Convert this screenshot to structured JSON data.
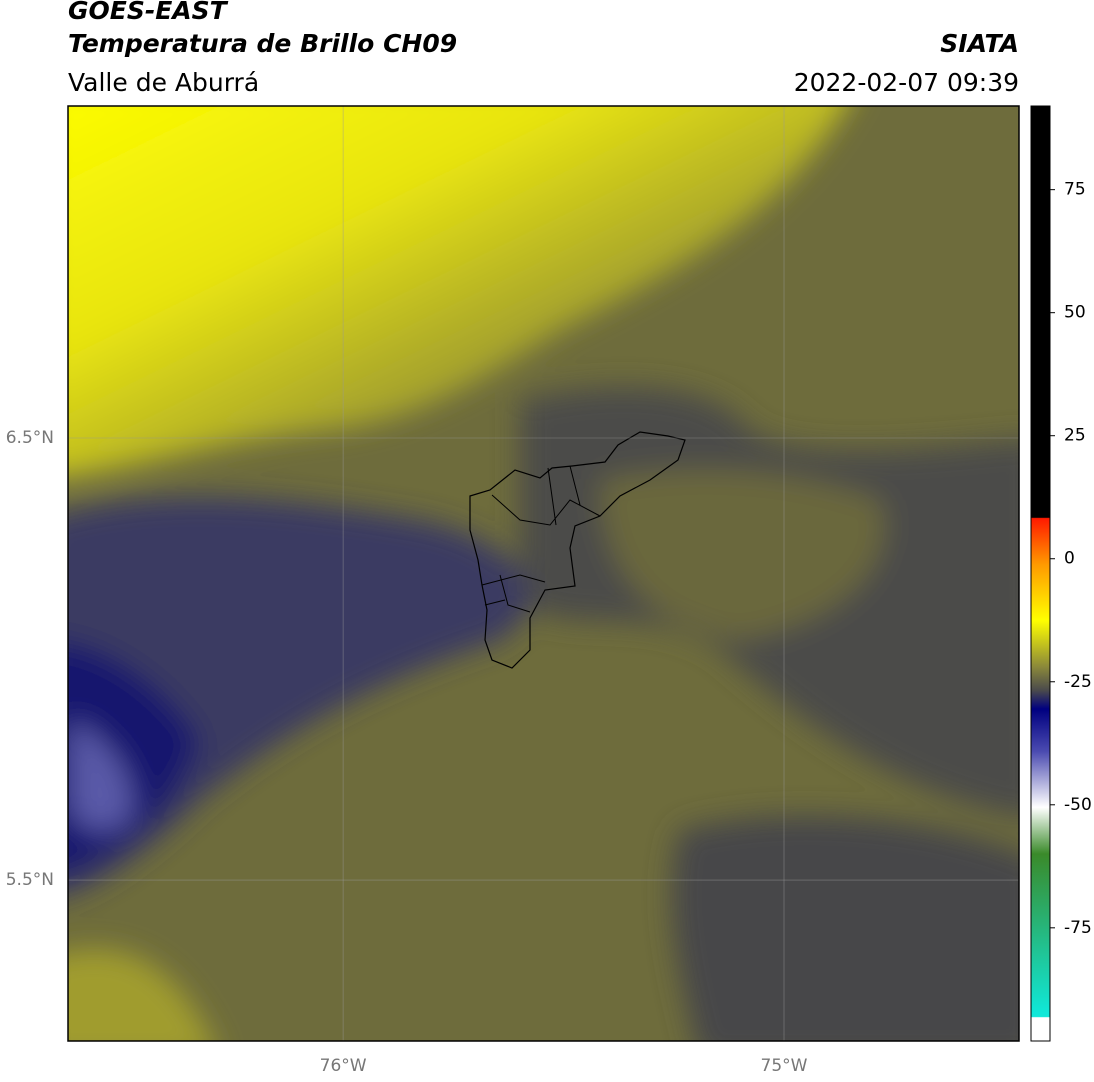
{
  "header": {
    "title": "GOES-EAST",
    "subtitle": "Temperatura de Brillo CH09",
    "region": "Valle de Aburrá",
    "source": "SIATA",
    "datetime": "2022-02-07 09:39"
  },
  "map": {
    "xlim": [
      -76.624,
      -74.467
    ],
    "ylim": [
      5.136,
      7.251
    ],
    "xticks": [
      {
        "value": -76,
        "label": "76°W"
      },
      {
        "value": -75,
        "label": "75°W"
      }
    ],
    "yticks": [
      {
        "value": 5.5,
        "label": "5.5°N"
      },
      {
        "value": 6.5,
        "label": "6.5°N"
      }
    ],
    "grid": true
  },
  "colorbar": {
    "range": [
      -98,
      92
    ],
    "ticks": [
      -75,
      -50,
      -25,
      0,
      25,
      50,
      75
    ]
  }
}
